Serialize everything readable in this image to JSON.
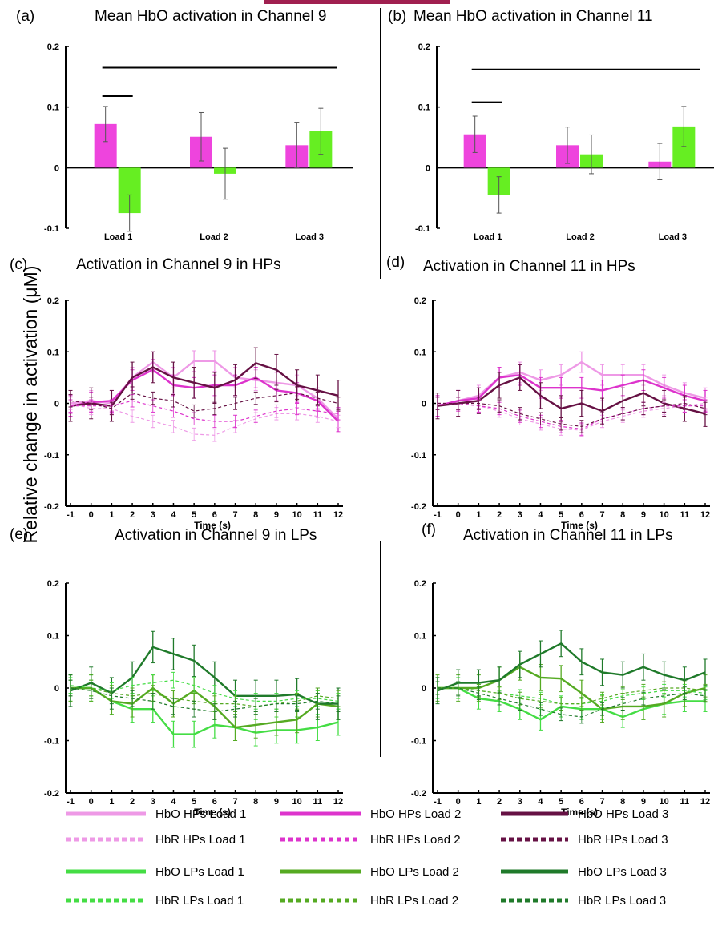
{
  "y_axis_label": "Relative change in activation (μM)",
  "colors": {
    "hbo_hp_l1": "#ee99e6",
    "hbo_hp_l2": "#dd33cc",
    "hbo_hp_l3": "#661144",
    "hbr_hp_l1": "#ee99e6",
    "hbr_hp_l2": "#dd33cc",
    "hbr_hp_l3": "#661144",
    "hbo_lp_l1": "#44dd44",
    "hbo_lp_l2": "#55aa22",
    "hbo_lp_l3": "#1f7a2a",
    "hbr_lp_l1": "#44dd44",
    "hbr_lp_l2": "#55aa22",
    "hbr_lp_l3": "#1f7a2a",
    "bar_hp": "#ee44dd",
    "bar_lp": "#66ee22"
  },
  "legend": [
    {
      "label": "HbO HPs Load 1",
      "key": "hbo_hp_l1",
      "dashed": false
    },
    {
      "label": "HbO HPs Load 2",
      "key": "hbo_hp_l2",
      "dashed": false
    },
    {
      "label": "HbO HPs Load 3",
      "key": "hbo_hp_l3",
      "dashed": false
    },
    {
      "label": "HbR HPs Load 1",
      "key": "hbr_hp_l1",
      "dashed": true
    },
    {
      "label": "HbR HPs Load 2",
      "key": "hbr_hp_l2",
      "dashed": true
    },
    {
      "label": "HbR HPs Load 3",
      "key": "hbr_hp_l3",
      "dashed": true
    },
    {
      "label": "HbO LPs Load 1",
      "key": "hbo_lp_l1",
      "dashed": false
    },
    {
      "label": "HbO LPs Load 2",
      "key": "hbo_lp_l2",
      "dashed": false
    },
    {
      "label": "HbO LPs Load 3",
      "key": "hbo_lp_l3",
      "dashed": false
    },
    {
      "label": "HbR LPs Load 1",
      "key": "hbr_lp_l1",
      "dashed": true
    },
    {
      "label": "HbR LPs Load 2",
      "key": "hbr_lp_l2",
      "dashed": true
    },
    {
      "label": "HbR LPs Load 3",
      "key": "hbr_lp_l3",
      "dashed": true
    }
  ],
  "chart_data": [
    {
      "panel": "(a)",
      "type": "bar",
      "title": "Mean HbO activation in Channel 9",
      "categories": [
        "Load 1",
        "Load 2",
        "Load 3"
      ],
      "yticks": [
        "0.2",
        "0.1",
        "0",
        "-0.1"
      ],
      "ylim": [
        -0.1,
        0.2
      ],
      "series": [
        {
          "key": "bar_hp",
          "values": [
            0.072,
            0.051,
            0.037
          ],
          "errors": [
            0.029,
            0.04,
            0.038
          ]
        },
        {
          "key": "bar_lp",
          "values": [
            -0.075,
            -0.01,
            0.06
          ],
          "errors": [
            0.03,
            0.042,
            0.038
          ]
        }
      ],
      "significance": [
        {
          "from": [
            0,
            0
          ],
          "to": [
            0,
            1
          ],
          "y": 0.118
        },
        {
          "from": [
            0,
            0
          ],
          "to": [
            2,
            1
          ],
          "y": 0.165
        }
      ]
    },
    {
      "panel": "(b)",
      "type": "bar",
      "title": "Mean HbO activation in Channel 11",
      "categories": [
        "Load 1",
        "Load 2",
        "Load 3"
      ],
      "yticks": [
        "0.2",
        "0.1",
        "0",
        "-0.1"
      ],
      "ylim": [
        -0.1,
        0.2
      ],
      "series": [
        {
          "key": "bar_hp",
          "values": [
            0.055,
            0.037,
            0.01
          ],
          "errors": [
            0.03,
            0.03,
            0.03
          ]
        },
        {
          "key": "bar_lp",
          "values": [
            -0.045,
            0.022,
            0.068
          ],
          "errors": [
            0.03,
            0.032,
            0.033
          ]
        }
      ],
      "significance": [
        {
          "from": [
            0,
            0
          ],
          "to": [
            0,
            1
          ],
          "y": 0.108
        },
        {
          "from": [
            0,
            0
          ],
          "to": [
            2,
            1
          ],
          "y": 0.162
        }
      ]
    },
    {
      "panel": "(c)",
      "type": "line",
      "title": "Activation in Channel 9 in HPs",
      "x": [
        -1,
        0,
        1,
        2,
        3,
        4,
        5,
        6,
        7,
        8,
        9,
        10,
        11,
        12
      ],
      "xticks": [
        "-1",
        "0",
        "1",
        "2",
        "3",
        "4",
        "5",
        "6",
        "7",
        "8",
        "9",
        "10",
        "11",
        "12"
      ],
      "yticks": [
        "0.2",
        "0.1",
        "0",
        "-0.1",
        "-0.2"
      ],
      "xlabel": "Time (s)",
      "ylim": [
        -0.2,
        0.2
      ],
      "series": [
        {
          "key": "hbo_hp_l1",
          "dashed": false,
          "values": [
            0,
            0.005,
            0,
            0.05,
            0.08,
            0.05,
            0.082,
            0.082,
            0.05,
            0.045,
            0.04,
            0.035,
            0.01,
            -0.03
          ],
          "err": 0.02
        },
        {
          "key": "hbo_hp_l2",
          "dashed": false,
          "values": [
            -0.005,
            0.002,
            0.005,
            0.045,
            0.065,
            0.035,
            0.03,
            0.035,
            0.035,
            0.05,
            0.025,
            0.02,
            0.005,
            -0.035
          ],
          "err": 0.02
        },
        {
          "key": "hbo_hp_l3",
          "dashed": false,
          "values": [
            -0.005,
            0,
            -0.005,
            0.05,
            0.07,
            0.05,
            0.04,
            0.03,
            0.045,
            0.078,
            0.065,
            0.035,
            0.025,
            0.015
          ],
          "err": 0.03
        },
        {
          "key": "hbr_hp_l1",
          "dashed": true,
          "values": [
            0,
            -0.01,
            -0.01,
            -0.025,
            -0.035,
            -0.045,
            -0.06,
            -0.062,
            -0.045,
            -0.03,
            -0.02,
            -0.02,
            -0.025,
            -0.035
          ],
          "err": 0.012
        },
        {
          "key": "hbr_hp_l2",
          "dashed": true,
          "values": [
            -0.005,
            -0.005,
            -0.005,
            0.005,
            -0.005,
            -0.015,
            -0.03,
            -0.035,
            -0.035,
            -0.025,
            -0.015,
            -0.01,
            -0.015,
            -0.02
          ],
          "err": 0.012
        },
        {
          "key": "hbr_hp_l3",
          "dashed": true,
          "values": [
            0.005,
            0,
            -0.01,
            0.02,
            0.01,
            0.005,
            -0.015,
            -0.01,
            0,
            0.01,
            0.015,
            0.02,
            0.01,
            0
          ],
          "err": 0.012
        }
      ]
    },
    {
      "panel": "(d)",
      "type": "line",
      "title": "Activation in Channel 11 in HPs",
      "x": [
        -1,
        0,
        1,
        2,
        3,
        4,
        5,
        6,
        7,
        8,
        9,
        10,
        11,
        12
      ],
      "xticks": [
        "-1",
        "0",
        "1",
        "2",
        "3",
        "4",
        "5",
        "6",
        "7",
        "8",
        "9",
        "10",
        "11",
        "12"
      ],
      "yticks": [
        "0.2",
        "0.1",
        "0",
        "-0.1",
        "-0.2"
      ],
      "xlabel": "Time (s)",
      "ylim": [
        -0.2,
        0.2
      ],
      "series": [
        {
          "key": "hbo_hp_l1",
          "dashed": false,
          "values": [
            -0.005,
            0.005,
            0.015,
            0.05,
            0.06,
            0.045,
            0.055,
            0.08,
            0.055,
            0.055,
            0.055,
            0.035,
            0.02,
            0.01
          ],
          "err": 0.02
        },
        {
          "key": "hbo_hp_l2",
          "dashed": false,
          "values": [
            -0.005,
            0.005,
            0.01,
            0.05,
            0.055,
            0.03,
            0.03,
            0.03,
            0.025,
            0.035,
            0.045,
            0.03,
            0.015,
            0.005
          ],
          "err": 0.02
        },
        {
          "key": "hbo_hp_l3",
          "dashed": false,
          "values": [
            -0.005,
            0,
            0.005,
            0.035,
            0.05,
            0.015,
            -0.01,
            0,
            -0.015,
            0.005,
            0.02,
            0,
            -0.01,
            -0.02
          ],
          "err": 0.025
        },
        {
          "key": "hbr_hp_l1",
          "dashed": true,
          "values": [
            0,
            0,
            -0.005,
            -0.015,
            -0.03,
            -0.04,
            -0.05,
            -0.052,
            -0.035,
            -0.025,
            -0.015,
            -0.01,
            -0.005,
            0
          ],
          "err": 0.012
        },
        {
          "key": "hbr_hp_l2",
          "dashed": true,
          "values": [
            0,
            0,
            -0.005,
            -0.01,
            -0.025,
            -0.035,
            -0.045,
            -0.05,
            -0.03,
            -0.02,
            -0.01,
            -0.005,
            -0.005,
            -0.005
          ],
          "err": 0.012
        },
        {
          "key": "hbr_hp_l3",
          "dashed": true,
          "values": [
            0,
            0,
            0,
            -0.005,
            -0.02,
            -0.03,
            -0.04,
            -0.045,
            -0.03,
            -0.02,
            -0.01,
            -0.005,
            0,
            -0.01
          ],
          "err": 0.012
        }
      ]
    },
    {
      "panel": "(e)",
      "type": "line",
      "title": "Activation in Channel 9 in LPs",
      "x": [
        -1,
        0,
        1,
        2,
        3,
        4,
        5,
        6,
        7,
        8,
        9,
        10,
        11,
        12
      ],
      "xticks": [
        "-1",
        "0",
        "1",
        "2",
        "3",
        "4",
        "5",
        "6",
        "7",
        "8",
        "9",
        "10",
        "11",
        "12"
      ],
      "yticks": [
        "0.2",
        "0.1",
        "0",
        "-0.1",
        "-0.2"
      ],
      "xlabel": "Time (s)",
      "ylim": [
        -0.2,
        0.2
      ],
      "series": [
        {
          "key": "hbo_lp_l1",
          "dashed": false,
          "values": [
            0,
            0,
            -0.025,
            -0.04,
            -0.04,
            -0.088,
            -0.088,
            -0.07,
            -0.075,
            -0.085,
            -0.08,
            -0.08,
            -0.075,
            -0.065
          ],
          "err": 0.025
        },
        {
          "key": "hbo_lp_l2",
          "dashed": false,
          "values": [
            0,
            0,
            -0.025,
            -0.03,
            0,
            -0.03,
            -0.005,
            -0.035,
            -0.075,
            -0.07,
            -0.065,
            -0.06,
            -0.03,
            -0.035
          ],
          "err": 0.025
        },
        {
          "key": "hbo_lp_l3",
          "dashed": false,
          "values": [
            -0.005,
            0.01,
            -0.01,
            0.02,
            0.078,
            0.065,
            0.052,
            0.02,
            -0.015,
            -0.015,
            -0.015,
            -0.012,
            -0.03,
            -0.03
          ],
          "err": 0.03
        },
        {
          "key": "hbr_lp_l1",
          "dashed": true,
          "values": [
            0.005,
            0,
            -0.005,
            0.005,
            0.01,
            0.015,
            0.005,
            -0.01,
            -0.02,
            -0.025,
            -0.025,
            -0.02,
            -0.02,
            -0.025
          ],
          "err": 0.015
        },
        {
          "key": "hbr_lp_l2",
          "dashed": true,
          "values": [
            0,
            0,
            -0.01,
            -0.015,
            -0.01,
            -0.02,
            -0.025,
            -0.03,
            -0.03,
            -0.035,
            -0.03,
            -0.025,
            -0.015,
            -0.02
          ],
          "err": 0.015
        },
        {
          "key": "hbr_lp_l3",
          "dashed": true,
          "values": [
            0,
            -0.005,
            -0.015,
            -0.02,
            -0.025,
            -0.035,
            -0.04,
            -0.045,
            -0.04,
            -0.035,
            -0.03,
            -0.03,
            -0.025,
            -0.03
          ],
          "err": 0.015
        }
      ]
    },
    {
      "panel": "(f)",
      "type": "line",
      "title": "Activation in Channel 11 in LPs",
      "x": [
        -1,
        0,
        1,
        2,
        3,
        4,
        5,
        6,
        7,
        8,
        9,
        10,
        11,
        12
      ],
      "xticks": [
        "-1",
        "0",
        "1",
        "2",
        "3",
        "4",
        "5",
        "6",
        "7",
        "8",
        "9",
        "10",
        "11",
        "12"
      ],
      "yticks": [
        "0.2",
        "0.1",
        "0",
        "-0.1",
        "-0.2"
      ],
      "xlabel": "Time (s)",
      "ylim": [
        -0.2,
        0.2
      ],
      "series": [
        {
          "key": "hbo_lp_l1",
          "dashed": false,
          "values": [
            0,
            0,
            -0.02,
            -0.025,
            -0.04,
            -0.06,
            -0.035,
            -0.04,
            -0.04,
            -0.055,
            -0.04,
            -0.03,
            -0.025,
            -0.025
          ],
          "err": 0.02
        },
        {
          "key": "hbo_lp_l2",
          "dashed": false,
          "values": [
            0,
            0,
            0,
            0.015,
            0.04,
            0.02,
            0.018,
            -0.01,
            -0.04,
            -0.035,
            -0.035,
            -0.03,
            -0.01,
            0
          ],
          "err": 0.025
        },
        {
          "key": "hbo_lp_l3",
          "dashed": false,
          "values": [
            -0.005,
            0.01,
            0.01,
            0.015,
            0.045,
            0.065,
            0.085,
            0.05,
            0.03,
            0.025,
            0.04,
            0.025,
            0.015,
            0.03
          ],
          "err": 0.025
        },
        {
          "key": "hbr_lp_l1",
          "dashed": true,
          "values": [
            0,
            0,
            -0.005,
            -0.01,
            -0.015,
            -0.02,
            -0.03,
            -0.03,
            -0.025,
            -0.015,
            -0.01,
            -0.005,
            -0.005,
            -0.01
          ],
          "err": 0.012
        },
        {
          "key": "hbr_lp_l2",
          "dashed": true,
          "values": [
            0,
            0,
            -0.005,
            -0.01,
            -0.02,
            -0.025,
            -0.03,
            -0.03,
            -0.02,
            -0.01,
            -0.005,
            0,
            0,
            -0.005
          ],
          "err": 0.012
        },
        {
          "key": "hbr_lp_l3",
          "dashed": true,
          "values": [
            0,
            0,
            -0.01,
            -0.02,
            -0.03,
            -0.04,
            -0.05,
            -0.055,
            -0.04,
            -0.03,
            -0.02,
            -0.015,
            -0.01,
            -0.015
          ],
          "err": 0.012
        }
      ]
    }
  ]
}
